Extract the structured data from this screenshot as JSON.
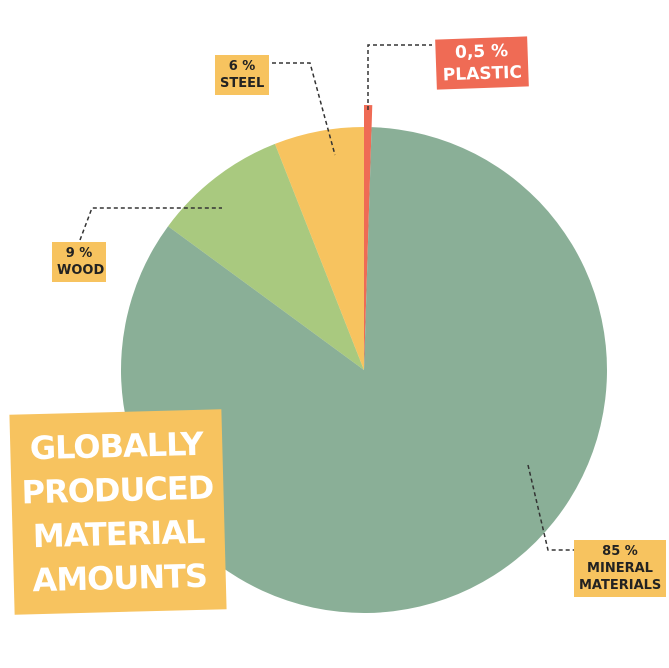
{
  "chart_data": {
    "type": "pie",
    "title": "GLOBALLY PRODUCED MATERIAL AMOUNTS",
    "categories": [
      "PLASTIC",
      "MINERAL MATERIALS",
      "WOOD",
      "STEEL"
    ],
    "values": [
      0.5,
      85,
      9,
      6
    ],
    "value_labels": [
      "0,5 %",
      "85 %",
      "9 %",
      "6 %"
    ],
    "colors": [
      "#ef6b55",
      "#8aaf97",
      "#a9c97f",
      "#f7c35f"
    ]
  }
}
